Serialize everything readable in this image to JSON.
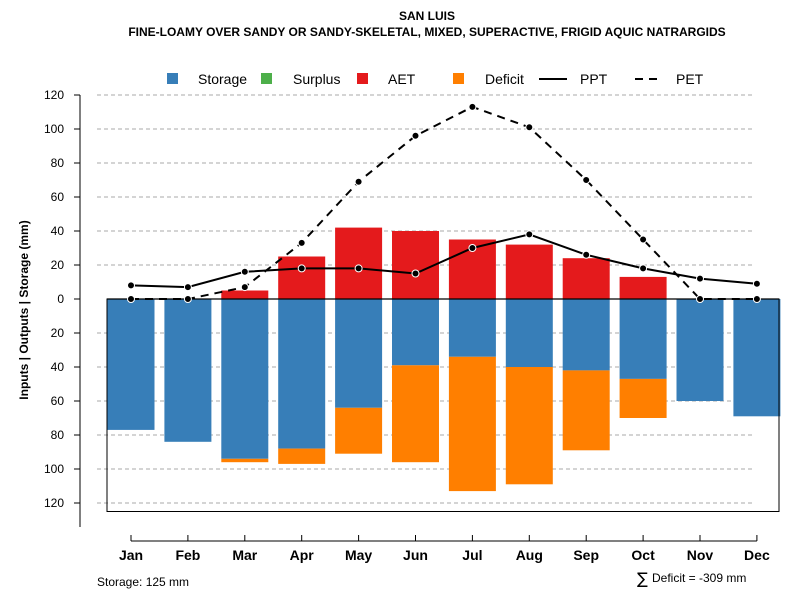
{
  "chart_data": {
    "type": "bar",
    "title": "SAN LUIS",
    "subtitle": "FINE-LOAMY OVER SANDY OR SANDY-SKELETAL, MIXED, SUPERACTIVE, FRIGID AQUIC NATRARGIDS",
    "ylabel": "Inputs | Outputs | Storage    (mm)",
    "ylim": [
      -125,
      120
    ],
    "yticks": [
      120,
      100,
      80,
      60,
      40,
      20,
      0,
      20,
      40,
      60,
      80,
      100,
      120
    ],
    "grid": true,
    "legend_position": "top",
    "categories": [
      "Jan",
      "Feb",
      "Mar",
      "Apr",
      "May",
      "Jun",
      "Jul",
      "Aug",
      "Sep",
      "Oct",
      "Nov",
      "Dec"
    ],
    "series": [
      {
        "name": "Storage",
        "color": "#377EB8",
        "values": [
          77,
          84,
          94,
          88,
          64,
          39,
          34,
          40,
          42,
          47,
          60,
          69
        ]
      },
      {
        "name": "Surplus",
        "color": "#4DAF4A",
        "values": [
          0,
          0,
          0,
          0,
          0,
          0,
          0,
          0,
          0,
          0,
          0,
          0
        ]
      },
      {
        "name": "AET",
        "color": "#E41A1C",
        "values": [
          0,
          0,
          5,
          25,
          42,
          40,
          35,
          32,
          24,
          13,
          0,
          0
        ]
      },
      {
        "name": "Deficit",
        "color": "#FF7F00",
        "values": [
          0,
          0,
          2,
          9,
          27,
          57,
          79,
          69,
          47,
          23,
          0,
          0
        ]
      },
      {
        "name": "PPT",
        "color": "#000000",
        "style": "solid",
        "values": [
          8,
          7,
          16,
          18,
          18,
          15,
          30,
          38,
          26,
          18,
          12,
          9
        ]
      },
      {
        "name": "PET",
        "color": "#000000",
        "style": "dashed",
        "values": [
          0,
          0,
          7,
          33,
          69,
          96,
          113,
          101,
          70,
          35,
          0,
          0
        ]
      }
    ],
    "annotations": {
      "storage": "Storage: 125 mm",
      "deficit_symbol": "∑",
      "deficit": "Deficit = -309 mm"
    }
  }
}
